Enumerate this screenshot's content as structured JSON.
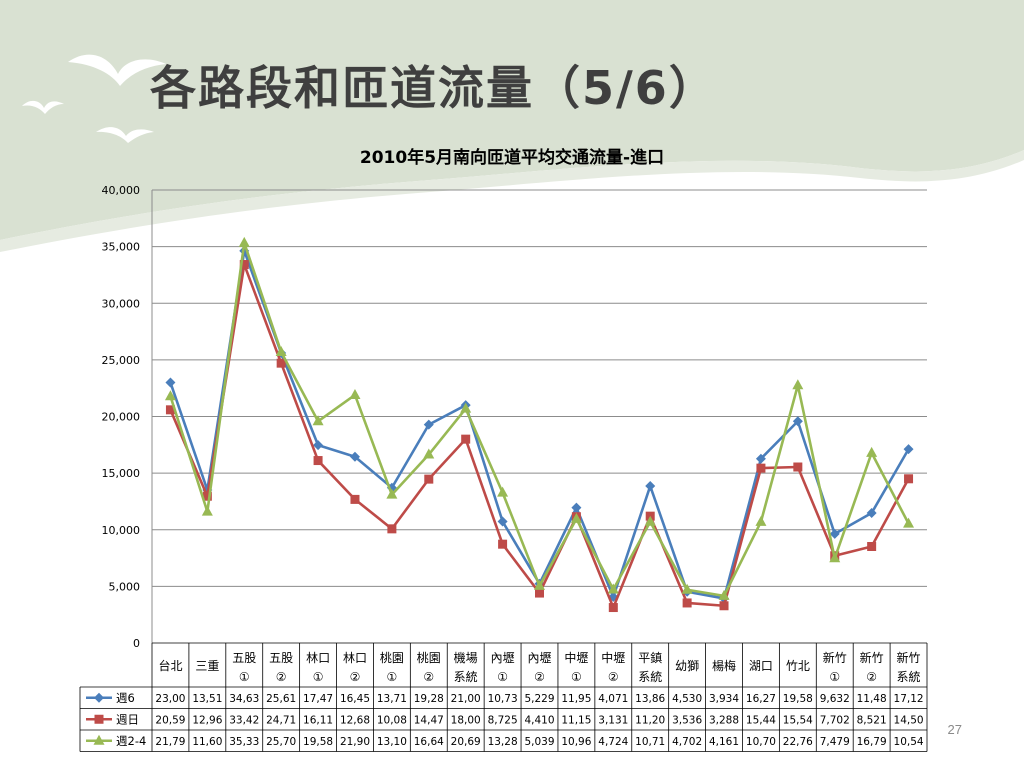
{
  "slide": {
    "title": "各路段和匝道流量（5/6）",
    "page_number": "27"
  },
  "chart_data": {
    "type": "line",
    "title": "2010年5月南向匝道平均交通流量-進口",
    "ylim": [
      0,
      40000
    ],
    "yticks": [
      "0",
      "5,000",
      "10,000",
      "15,000",
      "20,000",
      "25,000",
      "30,000",
      "35,000",
      "40,000"
    ],
    "grid": true,
    "categories": [
      [
        "台北"
      ],
      [
        "三重"
      ],
      [
        "五股",
        "①"
      ],
      [
        "五股",
        "②"
      ],
      [
        "林口",
        "①"
      ],
      [
        "林口",
        "②"
      ],
      [
        "桃園",
        "①"
      ],
      [
        "桃園",
        "②"
      ],
      [
        "機場",
        "系統"
      ],
      [
        "內壢",
        "①"
      ],
      [
        "內壢",
        "②"
      ],
      [
        "中壢",
        "①"
      ],
      [
        "中壢",
        "②"
      ],
      [
        "平鎮",
        "系統"
      ],
      [
        "幼獅"
      ],
      [
        "楊梅"
      ],
      [
        "湖口"
      ],
      [
        "竹北"
      ],
      [
        "新竹",
        "①"
      ],
      [
        "新竹",
        "②"
      ],
      [
        "新竹",
        "系統"
      ]
    ],
    "series": [
      {
        "name": "週6",
        "color": "#4a7ebb",
        "marker": "diamond",
        "values": [
          23000,
          13510,
          34630,
          25610,
          17470,
          16450,
          13710,
          19280,
          21000,
          10730,
          5229,
          11950,
          4071,
          13860,
          4530,
          3934,
          16270,
          19580,
          9632,
          11480,
          17120
        ],
        "labels": [
          "23,00",
          "13,51",
          "34,63",
          "25,61",
          "17,47",
          "16,45",
          "13,71",
          "19,28",
          "21,00",
          "10,73",
          "5,229",
          "11,95",
          "4,071",
          "13,86",
          "4,530",
          "3,934",
          "16,27",
          "19,58",
          "9,632",
          "11,48",
          "17,12"
        ]
      },
      {
        "name": "週日",
        "color": "#be4b48",
        "marker": "square",
        "values": [
          20590,
          12960,
          33420,
          24710,
          16110,
          12680,
          10080,
          14470,
          18000,
          8725,
          4410,
          11150,
          3131,
          11200,
          3536,
          3288,
          15440,
          15540,
          7702,
          8521,
          14500
        ],
        "labels": [
          "20,59",
          "12,96",
          "33,42",
          "24,71",
          "16,11",
          "12,68",
          "10,08",
          "14,47",
          "18,00",
          "8,725",
          "4,410",
          "11,15",
          "3,131",
          "11,20",
          "3,536",
          "3,288",
          "15,44",
          "15,54",
          "7,702",
          "8,521",
          "14,50"
        ]
      },
      {
        "name": "週2-4",
        "color": "#98b954",
        "marker": "triangle",
        "values": [
          21790,
          11600,
          35330,
          25700,
          19580,
          21900,
          13100,
          16640,
          20690,
          13280,
          5039,
          10960,
          4724,
          10710,
          4702,
          4161,
          10700,
          22760,
          7479,
          16790,
          10540
        ],
        "labels": [
          "21,79",
          "11,60",
          "35,33",
          "25,70",
          "19,58",
          "21,90",
          "13,10",
          "16,64",
          "20,69",
          "13,28",
          "5,039",
          "10,96",
          "4,724",
          "10,71",
          "4,702",
          "4,161",
          "10,70",
          "22,76",
          "7,479",
          "16,79",
          "10,54"
        ]
      }
    ]
  }
}
